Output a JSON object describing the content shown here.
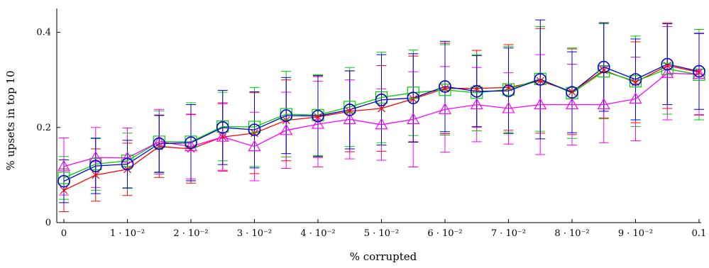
{
  "chart_data": {
    "type": "line",
    "xlabel": "% corrupted",
    "ylabel": "% upsets in top 10",
    "xlim": [
      0,
      0.1
    ],
    "ylim": [
      0,
      0.45
    ],
    "x_ticks": [
      {
        "value": 0,
        "label": "0"
      },
      {
        "value": 0.01,
        "label": "1 · 10⁻²"
      },
      {
        "value": 0.02,
        "label": "2 · 10⁻²"
      },
      {
        "value": 0.03,
        "label": "3 · 10⁻²"
      },
      {
        "value": 0.04,
        "label": "4 · 10⁻²"
      },
      {
        "value": 0.05,
        "label": "5 · 10⁻²"
      },
      {
        "value": 0.06,
        "label": "6 · 10⁻²"
      },
      {
        "value": 0.07,
        "label": "7 · 10⁻²"
      },
      {
        "value": 0.08,
        "label": "8 · 10⁻²"
      },
      {
        "value": 0.09,
        "label": "9 · 10⁻²"
      },
      {
        "value": 0.1,
        "label": "0.1"
      }
    ],
    "y_ticks": [
      {
        "value": 0,
        "label": "0"
      },
      {
        "value": 0.2,
        "label": "0.2"
      },
      {
        "value": 0.4,
        "label": "0.4"
      }
    ],
    "grid": false,
    "legend": "none",
    "x": [
      0,
      0.005,
      0.01,
      0.015,
      0.02,
      0.025,
      0.03,
      0.035,
      0.04,
      0.045,
      0.05,
      0.055,
      0.06,
      0.065,
      0.07,
      0.075,
      0.08,
      0.085,
      0.09,
      0.095,
      0.1
    ],
    "series": [
      {
        "color": "#ff0000",
        "marker": "x",
        "values": [
          0.068,
          0.1,
          0.112,
          0.16,
          0.155,
          0.18,
          0.188,
          0.215,
          0.222,
          0.234,
          0.24,
          0.26,
          0.282,
          0.282,
          0.284,
          0.298,
          0.275,
          0.32,
          0.295,
          0.33,
          0.316
        ],
        "err": [
          0.045,
          0.055,
          0.055,
          0.065,
          0.072,
          0.07,
          0.085,
          0.085,
          0.085,
          0.085,
          0.09,
          0.09,
          0.095,
          0.08,
          0.09,
          0.11,
          0.09,
          0.1,
          0.085,
          0.09,
          0.09
        ]
      },
      {
        "color": "#00cc00",
        "marker": "square",
        "values": [
          0.094,
          0.123,
          0.13,
          0.17,
          0.17,
          0.202,
          0.201,
          0.228,
          0.226,
          0.243,
          0.263,
          0.273,
          0.279,
          0.273,
          0.28,
          0.302,
          0.272,
          0.318,
          0.297,
          0.323,
          0.311
        ],
        "err": [
          0.045,
          0.055,
          0.058,
          0.065,
          0.082,
          0.072,
          0.083,
          0.09,
          0.085,
          0.083,
          0.095,
          0.09,
          0.095,
          0.08,
          0.09,
          0.11,
          0.095,
          0.1,
          0.095,
          0.095,
          0.095
        ]
      },
      {
        "color": "#ff00ff",
        "marker": "triangle",
        "values": [
          0.118,
          0.137,
          0.136,
          0.17,
          0.16,
          0.18,
          0.16,
          0.194,
          0.207,
          0.217,
          0.206,
          0.217,
          0.238,
          0.248,
          0.24,
          0.248,
          0.248,
          0.248,
          0.26,
          0.314,
          0.312
        ],
        "err": [
          0.06,
          0.063,
          0.063,
          0.068,
          0.068,
          0.072,
          0.072,
          0.08,
          0.09,
          0.083,
          0.075,
          0.1,
          0.09,
          0.078,
          0.075,
          0.105,
          0.085,
          0.08,
          0.088,
          0.098,
          0.085
        ]
      },
      {
        "color": "#0000cc",
        "marker": "circle",
        "values": [
          0.087,
          0.119,
          0.123,
          0.166,
          0.168,
          0.2,
          0.195,
          0.225,
          0.224,
          0.237,
          0.258,
          0.262,
          0.286,
          0.276,
          0.277,
          0.301,
          0.274,
          0.327,
          0.301,
          0.333,
          0.318
        ],
        "err": [
          0.045,
          0.058,
          0.05,
          0.06,
          0.08,
          0.078,
          0.08,
          0.08,
          0.085,
          0.082,
          0.095,
          0.093,
          0.095,
          0.075,
          0.09,
          0.125,
          0.085,
          0.093,
          0.085,
          0.085,
          0.08
        ]
      }
    ]
  }
}
